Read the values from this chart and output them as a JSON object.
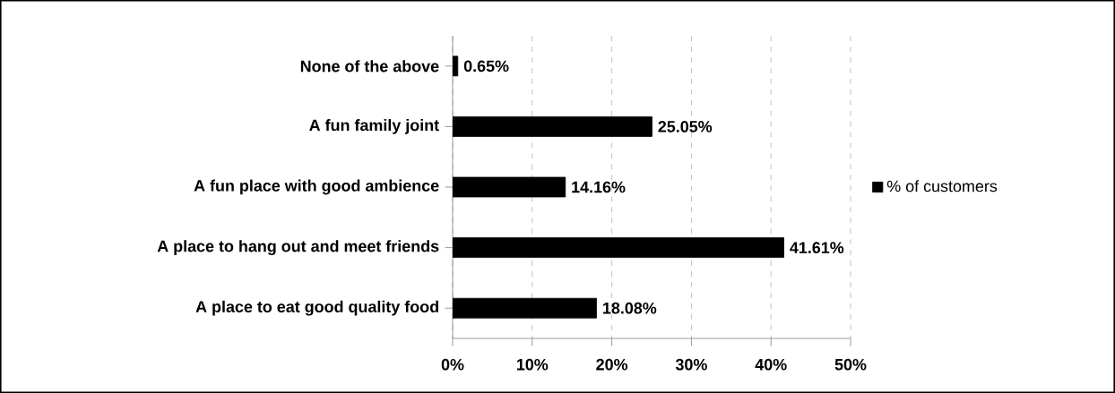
{
  "chart_data": {
    "type": "bar",
    "orientation": "horizontal",
    "categories": [
      "None of the above",
      "A fun family joint",
      "A fun place with good ambience",
      "A place to hang out and meet friends",
      "A place to eat good quality food"
    ],
    "series": [
      {
        "name": "% of customers",
        "color": "#000000",
        "values": [
          0.65,
          25.05,
          14.16,
          41.61,
          18.08
        ],
        "value_labels": [
          "0.65%",
          "25.05%",
          "14.16%",
          "41.61%",
          "18.08%"
        ]
      }
    ],
    "xlim": [
      0,
      50
    ],
    "xticks": [
      {
        "value": 0,
        "label": "0%"
      },
      {
        "value": 10,
        "label": "10%"
      },
      {
        "value": 20,
        "label": "20%"
      },
      {
        "value": 30,
        "label": "30%"
      },
      {
        "value": 40,
        "label": "40%"
      },
      {
        "value": 50,
        "label": "50%"
      }
    ],
    "grid": "x",
    "legend": "right"
  }
}
